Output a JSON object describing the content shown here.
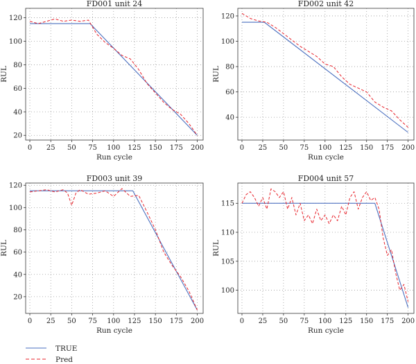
{
  "colors": {
    "true_line": "#4a6fbf",
    "pred_line": "#e8222a",
    "grid": "#9a9a9a",
    "frame": "#333333"
  },
  "legend": {
    "placement": "bottom-left",
    "items": [
      {
        "label": "TRUE",
        "style": "solid",
        "color": "#4a6fbf"
      },
      {
        "label": "Pred",
        "style": "dashed",
        "color": "#e8222a"
      }
    ]
  },
  "chart_data": [
    {
      "type": "line",
      "title": "FD001 unit 24",
      "xlabel": "Run cycle",
      "ylabel": "RUL",
      "xlim": [
        -5,
        207
      ],
      "ylim": [
        16,
        128
      ],
      "xticks": [
        0,
        25,
        50,
        75,
        100,
        125,
        150,
        175,
        200
      ],
      "yticks": [
        20,
        40,
        60,
        80,
        100,
        120
      ],
      "grid": true,
      "series": [
        {
          "name": "TRUE",
          "x": [
            0,
            72,
            200
          ],
          "y": [
            115,
            115,
            20
          ]
        },
        {
          "name": "Pred",
          "x": [
            0,
            10,
            20,
            30,
            40,
            50,
            60,
            70,
            75,
            80,
            90,
            100,
            110,
            120,
            130,
            140,
            150,
            160,
            170,
            180,
            190,
            200
          ],
          "y": [
            117,
            115,
            117,
            119,
            117,
            118,
            117,
            118,
            112,
            106,
            99,
            94,
            88,
            85,
            76,
            64,
            56,
            48,
            42,
            38,
            30,
            20
          ]
        }
      ]
    },
    {
      "type": "line",
      "title": "FD002 unit 42",
      "xlabel": "Run cycle",
      "ylabel": "RUL",
      "xlim": [
        -5,
        207
      ],
      "ylim": [
        22,
        126
      ],
      "xticks": [
        0,
        25,
        50,
        75,
        100,
        125,
        150,
        175,
        200
      ],
      "yticks": [
        40,
        60,
        80,
        100,
        120
      ],
      "grid": true,
      "series": [
        {
          "name": "TRUE",
          "x": [
            0,
            27,
            200
          ],
          "y": [
            115,
            115,
            28
          ]
        },
        {
          "name": "Pred",
          "x": [
            0,
            10,
            20,
            30,
            40,
            50,
            60,
            70,
            80,
            90,
            100,
            110,
            120,
            130,
            140,
            150,
            160,
            170,
            180,
            190,
            200
          ],
          "y": [
            122,
            118,
            116,
            115,
            111,
            106,
            101,
            96,
            92,
            88,
            82,
            80,
            72,
            66,
            63,
            60,
            52,
            48,
            45,
            38,
            32
          ]
        }
      ]
    },
    {
      "type": "line",
      "title": "FD003 unit 39",
      "xlabel": "Run cycle",
      "ylabel": "RUL",
      "xlim": [
        -5,
        207
      ],
      "ylim": [
        5,
        122
      ],
      "xticks": [
        0,
        25,
        50,
        75,
        100,
        125,
        150,
        175,
        200
      ],
      "yticks": [
        20,
        40,
        60,
        80,
        100,
        120
      ],
      "grid": true,
      "series": [
        {
          "name": "TRUE",
          "x": [
            0,
            123,
            200
          ],
          "y": [
            115,
            115,
            8
          ]
        },
        {
          "name": "Pred",
          "x": [
            0,
            10,
            20,
            30,
            40,
            45,
            50,
            55,
            60,
            70,
            80,
            90,
            100,
            110,
            120,
            130,
            140,
            150,
            160,
            170,
            180,
            190,
            200
          ],
          "y": [
            114,
            115,
            116,
            114,
            116,
            113,
            102,
            113,
            116,
            112,
            113,
            115,
            110,
            117,
            110,
            111,
            96,
            80,
            60,
            48,
            38,
            25,
            8
          ]
        }
      ]
    },
    {
      "type": "line",
      "title": "FD004 unit 57",
      "xlabel": "Run cycle",
      "ylabel": "RUL",
      "xlim": [
        -5,
        207
      ],
      "ylim": [
        96,
        118.5
      ],
      "xticks": [
        0,
        25,
        50,
        75,
        100,
        125,
        150,
        175,
        200
      ],
      "yticks": [
        100,
        105,
        110,
        115
      ],
      "grid": true,
      "series": [
        {
          "name": "TRUE",
          "x": [
            0,
            160,
            200
          ],
          "y": [
            115,
            115,
            97
          ]
        },
        {
          "name": "Pred",
          "x": [
            0,
            5,
            10,
            15,
            20,
            25,
            30,
            35,
            40,
            45,
            50,
            55,
            60,
            65,
            70,
            75,
            80,
            85,
            90,
            95,
            100,
            105,
            110,
            115,
            120,
            125,
            130,
            135,
            140,
            145,
            150,
            155,
            160,
            165,
            170,
            175,
            180,
            185,
            190,
            195,
            200
          ],
          "y": [
            115,
            116.5,
            117,
            116,
            114.5,
            116,
            114,
            117.5,
            117,
            116,
            117,
            114,
            116,
            113,
            115,
            112,
            113,
            111.5,
            114,
            112,
            113,
            111.5,
            113,
            112,
            114.5,
            113,
            116,
            117,
            114,
            116,
            117,
            115.5,
            116,
            114,
            109,
            106,
            107,
            103,
            100,
            101,
            98
          ]
        }
      ]
    }
  ]
}
